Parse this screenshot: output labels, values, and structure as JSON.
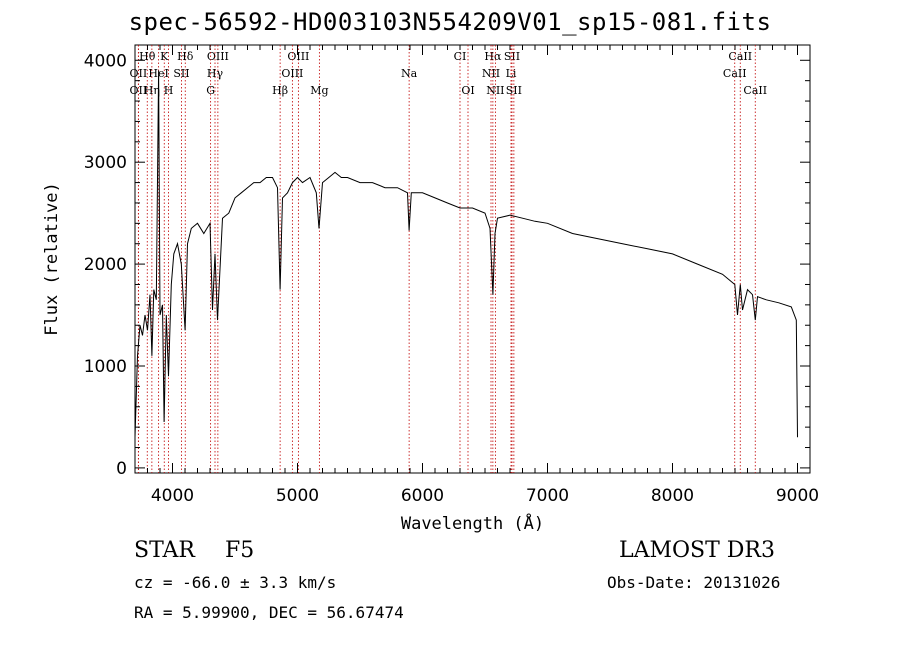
{
  "chart_data": {
    "type": "line",
    "title": "spec-56592-HD003103N554209V01_sp15-081.fits",
    "xlabel": "Wavelength (Å)",
    "ylabel": "Flux (relative)",
    "xlim": [
      3700,
      9100
    ],
    "ylim": [
      -50,
      4150
    ],
    "xticks": [
      4000,
      5000,
      6000,
      7000,
      8000,
      9000
    ],
    "xtick_labels": [
      "4000",
      "5000",
      "6000",
      "7000",
      "8000",
      "9000"
    ],
    "yticks": [
      0,
      1000,
      2000,
      3000,
      4000
    ],
    "ytick_labels": [
      "0",
      "1000",
      "2000",
      "3000",
      "4000"
    ],
    "series": [
      {
        "x": [
          3700,
          3720,
          3740,
          3760,
          3780,
          3800,
          3820,
          3835,
          3850,
          3870,
          3889,
          3900,
          3920,
          3933,
          3950,
          3968,
          3990,
          4010,
          4040,
          4070,
          4101,
          4120,
          4150,
          4200,
          4250,
          4300,
          4320,
          4340,
          4360,
          4400,
          4450,
          4500,
          4550,
          4600,
          4650,
          4700,
          4750,
          4800,
          4840,
          4861,
          4880,
          4920,
          4960,
          5000,
          5040,
          5100,
          5150,
          5172,
          5200,
          5250,
          5300,
          5350,
          5400,
          5500,
          5600,
          5700,
          5800,
          5880,
          5893,
          5910,
          6000,
          6100,
          6200,
          6300,
          6400,
          6500,
          6540,
          6563,
          6580,
          6600,
          6700,
          6800,
          6900,
          7000,
          7200,
          7400,
          7600,
          7800,
          8000,
          8200,
          8400,
          8498,
          8520,
          8542,
          8560,
          8600,
          8640,
          8662,
          8680,
          8750,
          8850,
          8950,
          8990,
          9000
        ],
        "y": [
          300,
          1100,
          1400,
          1300,
          1500,
          1350,
          1700,
          1100,
          1750,
          1650,
          3900,
          1500,
          1600,
          450,
          1500,
          900,
          1800,
          2100,
          2200,
          2000,
          1350,
          2200,
          2350,
          2400,
          2300,
          2400,
          1550,
          2100,
          1450,
          2450,
          2500,
          2650,
          2700,
          2750,
          2800,
          2800,
          2850,
          2850,
          2750,
          1750,
          2650,
          2700,
          2800,
          2850,
          2800,
          2850,
          2700,
          2350,
          2800,
          2850,
          2900,
          2850,
          2850,
          2800,
          2800,
          2750,
          2750,
          2700,
          2330,
          2700,
          2700,
          2650,
          2600,
          2550,
          2550,
          2500,
          2350,
          1700,
          2300,
          2450,
          2480,
          2450,
          2420,
          2400,
          2300,
          2250,
          2200,
          2150,
          2100,
          2000,
          1900,
          1800,
          1500,
          1800,
          1550,
          1750,
          1700,
          1450,
          1680,
          1650,
          1620,
          1580,
          1450,
          300
        ]
      }
    ],
    "lines": [
      {
        "label": "Hθ",
        "x": 3798,
        "row": 0
      },
      {
        "label": "K",
        "x": 3934,
        "row": 0
      },
      {
        "label": "Hδ",
        "x": 4102,
        "row": 0
      },
      {
        "label": "OIII",
        "x": 4363,
        "row": 0
      },
      {
        "label": "OIII",
        "x": 5007,
        "row": 0
      },
      {
        "label": "CI",
        "x": 6300,
        "row": 0
      },
      {
        "label": "Hα",
        "x": 6563,
        "row": 0
      },
      {
        "label": "SII",
        "x": 6716,
        "row": 0
      },
      {
        "label": "CaII",
        "x": 8542,
        "row": 0
      },
      {
        "label": "OII",
        "x": 3727,
        "row": 1
      },
      {
        "label": "HeI",
        "x": 3889,
        "row": 1
      },
      {
        "label": "SII",
        "x": 4072,
        "row": 1
      },
      {
        "label": "Hγ",
        "x": 4340,
        "row": 1
      },
      {
        "label": "OIII",
        "x": 4959,
        "row": 1
      },
      {
        "label": "Na",
        "x": 5893,
        "row": 1
      },
      {
        "label": "NII",
        "x": 6548,
        "row": 1
      },
      {
        "label": "Li",
        "x": 6708,
        "row": 1
      },
      {
        "label": "CaII",
        "x": 8498,
        "row": 1
      },
      {
        "label": "OII",
        "x": 3727,
        "row": 2
      },
      {
        "label": "Hη",
        "x": 3835,
        "row": 2
      },
      {
        "label": "H",
        "x": 3968,
        "row": 2
      },
      {
        "label": "G",
        "x": 4305,
        "row": 2
      },
      {
        "label": "Hβ",
        "x": 4861,
        "row": 2
      },
      {
        "label": "Mg",
        "x": 5175,
        "row": 2
      },
      {
        "label": "OI",
        "x": 6364,
        "row": 2
      },
      {
        "label": "NII",
        "x": 6583,
        "row": 2
      },
      {
        "label": "SII",
        "x": 6731,
        "row": 2
      },
      {
        "label": "CaII",
        "x": 8662,
        "row": 2
      }
    ]
  },
  "info": {
    "object_class": "STAR",
    "subclass": "F5",
    "survey": "LAMOST DR3",
    "redshift": "cz =  -66.0 ± 3.3 km/s",
    "obs_date": "Obs-Date: 20131026",
    "coords": "RA =   5.99900, DEC =  56.67474"
  },
  "colors": {
    "line_markers": "#c00000",
    "spectrum": "#000000"
  }
}
